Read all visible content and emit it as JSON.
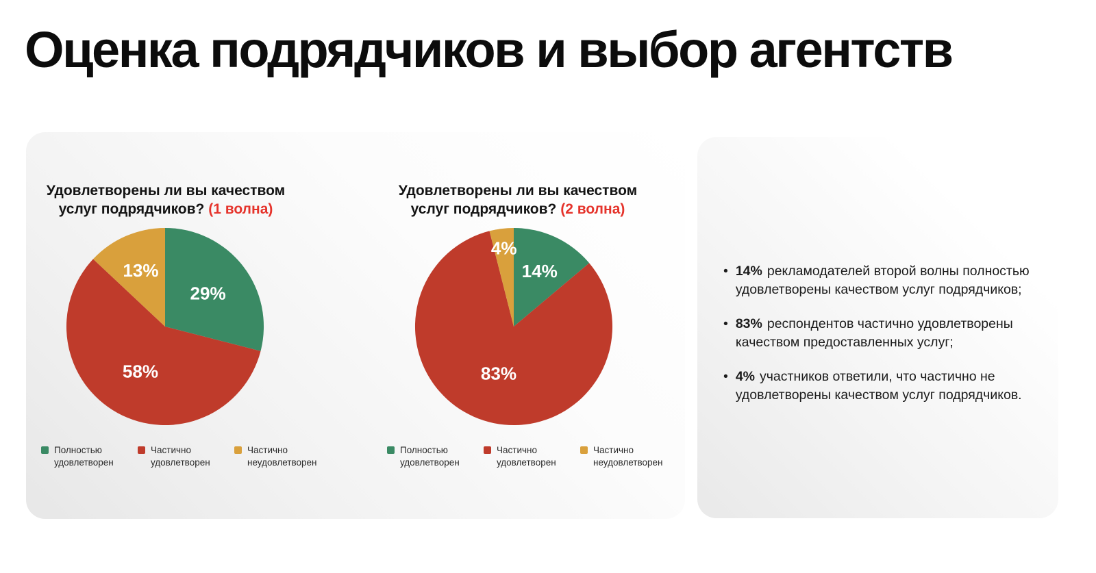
{
  "slide": {
    "title": "Оценка подрядчиков и выбор агентств"
  },
  "colors": {
    "accent_red": "#e5332b",
    "pie_green": "#3a8a64",
    "pie_red": "#bf3b2b",
    "pie_yellow": "#d9a03c"
  },
  "charts": [
    {
      "question": "Удовлетворены ли вы качеством услуг подрядчиков?",
      "wave_label": "(1 волна)"
    },
    {
      "question": "Удовлетворены ли вы качеством услуг подрядчиков?",
      "wave_label": "(2 волна)"
    }
  ],
  "chart_data": [
    {
      "type": "pie",
      "title": "Удовлетворены ли вы качеством услуг подрядчиков? (1 волна)",
      "categories": [
        "Полностью удовлетворен",
        "Частично удовлетворен",
        "Частично неудовлетворен"
      ],
      "values": [
        29,
        58,
        13
      ],
      "value_labels": [
        "29%",
        "58%",
        "13%"
      ],
      "colors": [
        "#3a8a64",
        "#bf3b2b",
        "#d9a03c"
      ],
      "start_angle_deg": -90,
      "direction": "clockwise",
      "label_radius": [
        0.55,
        0.52,
        0.62
      ],
      "legend_position": "bottom"
    },
    {
      "type": "pie",
      "title": "Удовлетворены ли вы качеством услуг подрядчиков? (2 волна)",
      "categories": [
        "Полностью удовлетворен",
        "Частично удовлетворен",
        "Частично неудовлетворен"
      ],
      "values": [
        14,
        83,
        4
      ],
      "value_labels": [
        "14%",
        "83%",
        "4%"
      ],
      "colors": [
        "#3a8a64",
        "#bf3b2b",
        "#d9a03c"
      ],
      "start_angle_deg": -90,
      "direction": "clockwise",
      "label_radius": [
        0.62,
        0.5,
        0.8
      ],
      "legend_position": "bottom"
    }
  ],
  "legend": {
    "items": [
      {
        "label": "Полностью удовлетворен",
        "color": "#3a8a64"
      },
      {
        "label": "Частично удовлетворен",
        "color": "#bf3b2b"
      },
      {
        "label": "Частично неудовлетворен",
        "color": "#d9a03c"
      }
    ]
  },
  "insights": {
    "bullets": [
      {
        "value": "14%",
        "text": "рекламодателей второй волны полностью удовлетворены качеством услуг подрядчиков;"
      },
      {
        "value": "83%",
        "text": "респондентов частично удовлетворены качеством предоставленных услуг;"
      },
      {
        "value": "4%",
        "text": "участников ответили, что частично не удовлетворены качеством услуг подрядчиков."
      }
    ],
    "bullet_glyph": "•"
  }
}
